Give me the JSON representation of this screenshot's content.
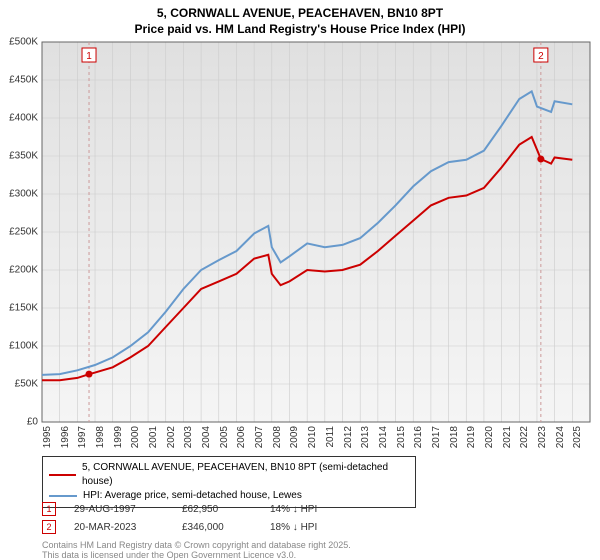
{
  "title_line1": "5, CORNWALL AVENUE, PEACEHAVEN, BN10 8PT",
  "title_line2": "Price paid vs. HM Land Registry's House Price Index (HPI)",
  "chart": {
    "type": "line",
    "background_gradient_top": "#e0e0e0",
    "background_gradient_bottom": "#f5f5f5",
    "grid_color": "#cccccc",
    "axis_color": "#666666",
    "x_min": 1995,
    "x_max": 2026,
    "y_min": 0,
    "y_max": 500000,
    "y_ticks": [
      0,
      50000,
      100000,
      150000,
      200000,
      250000,
      300000,
      350000,
      400000,
      450000,
      500000
    ],
    "y_tick_labels": [
      "£0",
      "£50K",
      "£100K",
      "£150K",
      "£200K",
      "£250K",
      "£300K",
      "£350K",
      "£400K",
      "£450K",
      "£500K"
    ],
    "x_ticks": [
      1995,
      1996,
      1997,
      1998,
      1999,
      2000,
      2001,
      2002,
      2003,
      2004,
      2005,
      2006,
      2007,
      2008,
      2009,
      2010,
      2011,
      2012,
      2013,
      2014,
      2015,
      2016,
      2017,
      2018,
      2019,
      2020,
      2021,
      2022,
      2023,
      2024,
      2025
    ],
    "series": [
      {
        "name": "price_paid",
        "label": "5, CORNWALL AVENUE, PEACEHAVEN, BN10 8PT (semi-detached house)",
        "color": "#cc0000",
        "line_width": 2,
        "data": [
          [
            1995,
            55000
          ],
          [
            1996,
            55000
          ],
          [
            1997,
            58000
          ],
          [
            1997.66,
            62950
          ],
          [
            1998,
            65000
          ],
          [
            1999,
            72000
          ],
          [
            2000,
            85000
          ],
          [
            2001,
            100000
          ],
          [
            2002,
            125000
          ],
          [
            2003,
            150000
          ],
          [
            2004,
            175000
          ],
          [
            2005,
            185000
          ],
          [
            2006,
            195000
          ],
          [
            2007,
            215000
          ],
          [
            2007.8,
            220000
          ],
          [
            2008,
            195000
          ],
          [
            2008.5,
            180000
          ],
          [
            2009,
            185000
          ],
          [
            2010,
            200000
          ],
          [
            2011,
            198000
          ],
          [
            2012,
            200000
          ],
          [
            2013,
            207000
          ],
          [
            2014,
            225000
          ],
          [
            2015,
            245000
          ],
          [
            2016,
            265000
          ],
          [
            2017,
            285000
          ],
          [
            2018,
            295000
          ],
          [
            2019,
            298000
          ],
          [
            2020,
            308000
          ],
          [
            2021,
            335000
          ],
          [
            2022,
            365000
          ],
          [
            2022.7,
            375000
          ],
          [
            2023.22,
            346000
          ],
          [
            2023.8,
            340000
          ],
          [
            2024,
            348000
          ],
          [
            2025,
            345000
          ]
        ]
      },
      {
        "name": "hpi",
        "label": "HPI: Average price, semi-detached house, Lewes",
        "color": "#6699cc",
        "line_width": 2,
        "data": [
          [
            1995,
            62000
          ],
          [
            1996,
            63000
          ],
          [
            1997,
            68000
          ],
          [
            1998,
            75000
          ],
          [
            1999,
            85000
          ],
          [
            2000,
            100000
          ],
          [
            2001,
            118000
          ],
          [
            2002,
            145000
          ],
          [
            2003,
            175000
          ],
          [
            2004,
            200000
          ],
          [
            2005,
            213000
          ],
          [
            2006,
            225000
          ],
          [
            2007,
            248000
          ],
          [
            2007.8,
            258000
          ],
          [
            2008,
            230000
          ],
          [
            2008.5,
            210000
          ],
          [
            2009,
            218000
          ],
          [
            2010,
            235000
          ],
          [
            2011,
            230000
          ],
          [
            2012,
            233000
          ],
          [
            2013,
            242000
          ],
          [
            2014,
            262000
          ],
          [
            2015,
            285000
          ],
          [
            2016,
            310000
          ],
          [
            2017,
            330000
          ],
          [
            2018,
            342000
          ],
          [
            2019,
            345000
          ],
          [
            2020,
            357000
          ],
          [
            2021,
            390000
          ],
          [
            2022,
            425000
          ],
          [
            2022.7,
            435000
          ],
          [
            2023,
            415000
          ],
          [
            2023.8,
            408000
          ],
          [
            2024,
            422000
          ],
          [
            2025,
            418000
          ]
        ]
      }
    ],
    "markers": [
      {
        "n": "1",
        "x": 1997.66,
        "y": 62950,
        "color": "#cc0000"
      },
      {
        "n": "2",
        "x": 2023.22,
        "y": 346000,
        "color": "#cc0000"
      }
    ],
    "marker_line_color": "#cc9999"
  },
  "legend": {
    "border_color": "#333333",
    "items": [
      {
        "color": "#cc0000",
        "label": "5, CORNWALL AVENUE, PEACEHAVEN, BN10 8PT (semi-detached house)"
      },
      {
        "color": "#6699cc",
        "label": "HPI: Average price, semi-detached house, Lewes"
      }
    ]
  },
  "marker_table": [
    {
      "n": "1",
      "color": "#cc0000",
      "date": "29-AUG-1997",
      "price": "£62,950",
      "delta": "14% ↓ HPI"
    },
    {
      "n": "2",
      "color": "#cc0000",
      "date": "20-MAR-2023",
      "price": "£346,000",
      "delta": "18% ↓ HPI"
    }
  ],
  "footer": "Contains HM Land Registry data © Crown copyright and database right 2025.",
  "footer2": "This data is licensed under the Open Government Licence v3.0."
}
